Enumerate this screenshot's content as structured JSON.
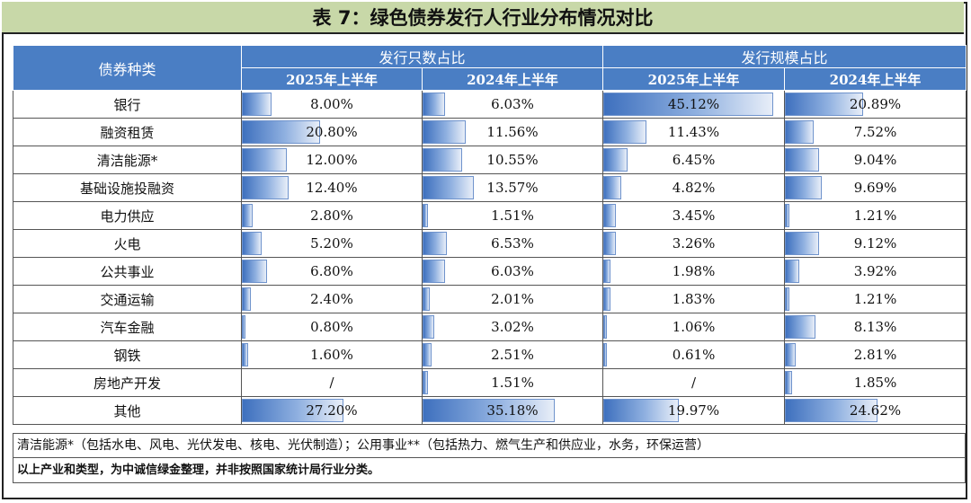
{
  "title": "表 7：绿色债券发行人行业分布情况对比",
  "header": {
    "category": "债券种类",
    "group1": "发行只数占比",
    "group2": "发行规模占比",
    "sub": [
      "2025年上半年",
      "2024年上半年",
      "2025年上半年",
      "2024年上半年"
    ]
  },
  "rows": [
    {
      "name": "银行",
      "values": [
        "8.00%",
        "6.03%",
        "45.12%",
        "20.89%"
      ],
      "fills": [
        8.0,
        6.03,
        45.12,
        20.89
      ]
    },
    {
      "name": "融资租赁",
      "values": [
        "20.80%",
        "11.56%",
        "11.43%",
        "7.52%"
      ],
      "fills": [
        20.8,
        11.56,
        11.43,
        7.52
      ]
    },
    {
      "name": "清洁能源*",
      "values": [
        "12.00%",
        "10.55%",
        "6.45%",
        "9.04%"
      ],
      "fills": [
        12.0,
        10.55,
        6.45,
        9.04
      ]
    },
    {
      "name": "基础设施投融资",
      "values": [
        "12.40%",
        "13.57%",
        "4.82%",
        "9.69%"
      ],
      "fills": [
        12.4,
        13.57,
        4.82,
        9.69
      ]
    },
    {
      "name": "电力供应",
      "values": [
        "2.80%",
        "1.51%",
        "3.45%",
        "1.21%"
      ],
      "fills": [
        2.8,
        1.51,
        3.45,
        1.21
      ]
    },
    {
      "name": "火电",
      "values": [
        "5.20%",
        "6.53%",
        "3.26%",
        "9.12%"
      ],
      "fills": [
        5.2,
        6.53,
        3.26,
        9.12
      ]
    },
    {
      "name": "公共事业",
      "values": [
        "6.80%",
        "6.03%",
        "1.98%",
        "3.92%"
      ],
      "fills": [
        6.8,
        6.03,
        1.98,
        3.92
      ]
    },
    {
      "name": "交通运输",
      "values": [
        "2.40%",
        "2.01%",
        "1.83%",
        "1.21%"
      ],
      "fills": [
        2.4,
        2.01,
        1.83,
        1.21
      ]
    },
    {
      "name": "汽车金融",
      "values": [
        "0.80%",
        "3.02%",
        "1.06%",
        "8.13%"
      ],
      "fills": [
        0.8,
        3.02,
        1.06,
        8.13
      ]
    },
    {
      "name": "钢铁",
      "values": [
        "1.60%",
        "2.51%",
        "0.61%",
        "2.81%"
      ],
      "fills": [
        1.6,
        2.51,
        0.61,
        2.81
      ]
    },
    {
      "name": "房地产开发",
      "values": [
        "/",
        "1.51%",
        "/",
        "1.85%"
      ],
      "fills": [
        0,
        1.51,
        0,
        1.85
      ]
    },
    {
      "name": "其他",
      "values": [
        "27.20%",
        "35.18%",
        "19.97%",
        "24.62%"
      ],
      "fills": [
        27.2,
        35.18,
        19.97,
        24.62
      ]
    }
  ],
  "notes": {
    "line1": "清洁能源*（包括水电、风电、光伏发电、核电、光伏制造）；公用事业**（包括热力、燃气生产和供应业，水务，环保运营）",
    "line2": "以上产业和类型，为中诚信绿金整理，并非按照国家统计局行业分类。"
  },
  "colors": {
    "header": "#4a7ec4",
    "title_bg": "#c8d8a8",
    "bar": "#3e70be"
  }
}
